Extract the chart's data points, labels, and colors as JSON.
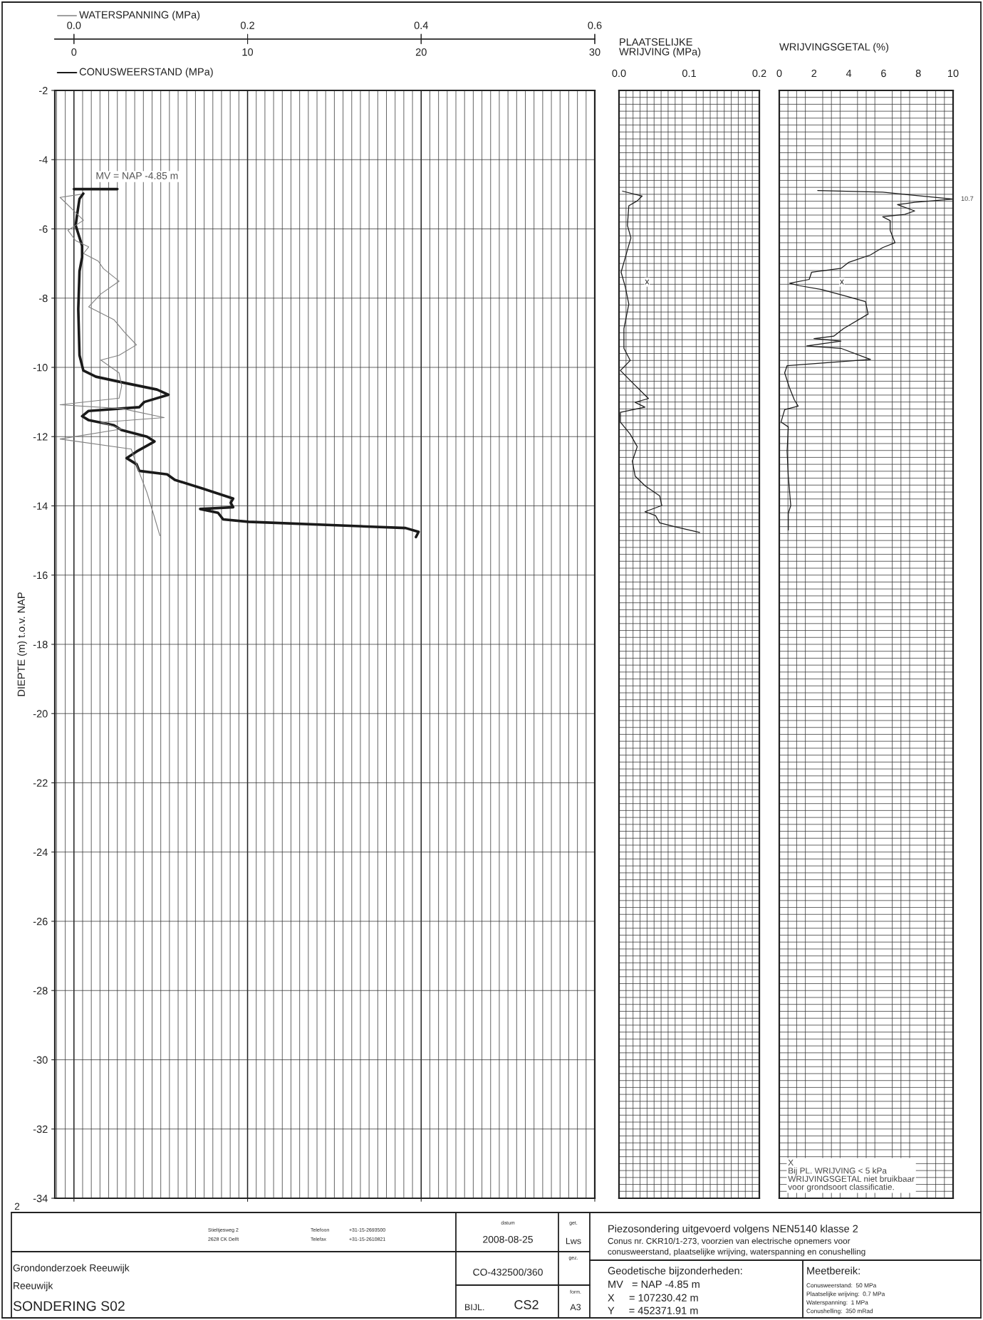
{
  "chart_data": [
    {
      "type": "line",
      "orientation": "horizontal",
      "xlabel": "CONUSWEERSTAND (MPa)",
      "x2label": "WATERSPANNING (MPa)",
      "ylabel": "DIEPTE (m) t.o.v. NAP",
      "xlim": [
        -1.1,
        30
      ],
      "xticks": [
        0,
        10,
        20,
        30
      ],
      "x2lim": [
        -0.022,
        0.6
      ],
      "x2ticks": [
        {
          "value": 0,
          "label": "0.0"
        },
        {
          "value": 0.2,
          "label": "0.2"
        },
        {
          "value": 0.4,
          "label": "0.4"
        },
        {
          "value": 0.6,
          "label": "0.6"
        }
      ],
      "ylim": [
        -34,
        -2
      ],
      "yticks": [
        -2,
        -4,
        -6,
        -8,
        -10,
        -12,
        -14,
        -16,
        -18,
        -20,
        -22,
        -24,
        -26,
        -28,
        -30,
        -32,
        -34
      ],
      "grid": true,
      "series": [
        {
          "color": "#1a1a1a",
          "x": [
            -4.98,
            -5.13,
            -5.6,
            -5.9,
            -6.49,
            -6.82,
            -7.22,
            -8.32,
            -9.65,
            -10.09,
            -10.27,
            -10.46,
            -10.64,
            -10.79,
            -11.0,
            -11.15,
            -11.26,
            -11.41,
            -11.52,
            -11.67,
            -11.81,
            -12.0,
            -12.14,
            -12.43,
            -12.62,
            -12.8,
            -12.99,
            -13.09,
            -13.25,
            -13.5,
            -13.79,
            -13.91,
            -14.04,
            -14.09,
            -14.2,
            -14.39,
            -14.46,
            -14.64,
            -14.75,
            -14.9
          ],
          "values": [
            0.54,
            0.32,
            0.18,
            0.1,
            0.47,
            0.47,
            0.32,
            0.25,
            0.32,
            0.54,
            1.27,
            3.03,
            4.78,
            5.44,
            4.05,
            3.76,
            0.83,
            0.47,
            0.83,
            2.3,
            2.74,
            4.2,
            4.64,
            3.61,
            3.03,
            3.61,
            3.76,
            5.37,
            5.81,
            7.42,
            9.17,
            9.03,
            9.17,
            7.27,
            8.3,
            8.59,
            10.05,
            19.1,
            19.85,
            19.7
          ]
        },
        {
          "color": "#808080",
          "axis": "x2",
          "x": [
            -5.0,
            -5.09,
            -5.38,
            -5.75,
            -6.04,
            -6.34,
            -6.52,
            -6.71,
            -6.93,
            -7.15,
            -7.51,
            -7.88,
            -8.25,
            -8.62,
            -8.98,
            -9.35,
            -9.65,
            -9.79,
            -10.16,
            -10.53,
            -10.89,
            -11.08,
            -11.19,
            -11.45,
            -11.59,
            -11.78,
            -12.07,
            -12.36,
            -13.02,
            -13.61,
            -14.35,
            -14.86
          ],
          "values": [
            0.008,
            -0.016,
            -0.004,
            0.011,
            -0.007,
            0.002,
            0.017,
            0.011,
            0.028,
            0.034,
            0.052,
            0.031,
            0.017,
            0.046,
            0.058,
            0.072,
            0.052,
            0.031,
            0.052,
            0.055,
            0.052,
            -0.016,
            0.055,
            0.104,
            0.031,
            0.055,
            -0.016,
            0.066,
            0.075,
            0.084,
            0.093,
            0.099
          ]
        },
        {
          "color": "#1a1a1a",
          "x": [
            -4.85,
            -4.85
          ],
          "values": [
            0,
            2.5
          ]
        }
      ],
      "annotations": [
        {
          "text": "MV = NAP -4.85 m",
          "x": 0,
          "y": -4.85
        },
        "2"
      ]
    },
    {
      "type": "line",
      "orientation": "horizontal",
      "xlabel": "PLAATSELIJKE\nWRIJVING (MPa)",
      "xlim": [
        0,
        0.2
      ],
      "xticks": [
        {
          "value": 0,
          "label": "0.0"
        },
        {
          "value": 0.1,
          "label": "0.1"
        },
        {
          "value": 0.2,
          "label": "0.2"
        }
      ],
      "ylim": [
        -34,
        -2
      ],
      "yticks": [
        -2,
        -4,
        -6,
        -8,
        -10,
        -12,
        -14,
        -16,
        -18,
        -20,
        -22,
        -24,
        -26,
        -28,
        -30,
        -32,
        -34
      ],
      "grid": true,
      "tick_labels": "x",
      "series": [
        {
          "color": "#1a1a1a",
          "x": [
            -4.91,
            -5.05,
            -5.19,
            -5.33,
            -5.9,
            -6.26,
            -6.61,
            -7.25,
            -7.68,
            -8.17,
            -8.88,
            -9.45,
            -9.8,
            -10.09,
            -10.44,
            -10.9,
            -11.01,
            -11.15,
            -11.3,
            -11.58,
            -11.93,
            -12.29,
            -12.71,
            -13.14,
            -13.42,
            -13.71,
            -13.99,
            -14.17,
            -14.28,
            -14.49,
            -14.6,
            -14.77
          ],
          "values": [
            0.005,
            0.033,
            0.026,
            0.014,
            0.012,
            0.017,
            0.012,
            0.003,
            0.009,
            0.014,
            0.007,
            0.007,
            0.016,
            0.002,
            0.019,
            0.042,
            0.023,
            0.037,
            0.002,
            0.002,
            0.016,
            0.026,
            0.019,
            0.023,
            0.037,
            0.058,
            0.061,
            0.037,
            0.052,
            0.058,
            0.079,
            0.115
          ]
        }
      ],
      "annotations": [
        "x"
      ]
    },
    {
      "type": "line",
      "orientation": "horizontal",
      "xlabel": "WRIJVINGSGETAL (%)",
      "xlim": [
        0,
        10
      ],
      "xticks": [
        0,
        2,
        4,
        6,
        8,
        10
      ],
      "ylim": [
        -34,
        -2
      ],
      "yticks": [
        -2,
        -4,
        -6,
        -8,
        -10,
        -12,
        -14,
        -16,
        -18,
        -20,
        -22,
        -24,
        -26,
        -28,
        -30,
        -32,
        -34
      ],
      "grid": true,
      "tick_labels": "x",
      "series": [
        {
          "color": "#1a1a1a",
          "x": [
            -4.89,
            -4.94,
            -5.01,
            -5.14,
            -5.23,
            -5.3,
            -5.48,
            -5.58,
            -5.65,
            -5.76,
            -6.04,
            -6.4,
            -6.54,
            -6.75,
            -6.97,
            -7.14,
            -7.25,
            -7.46,
            -7.57,
            -7.64,
            -7.75,
            -7.96,
            -8.1,
            -8.46,
            -8.88,
            -9.1,
            -9.17,
            -9.24,
            -9.38,
            -9.45,
            -9.77,
            -9.95,
            -10.16,
            -10.59,
            -10.94,
            -11.12,
            -11.22,
            -11.58,
            -11.72,
            -12.43,
            -13.14,
            -13.99,
            -14.21,
            -14.7
          ],
          "values": [
            2.21,
            5.95,
            7.36,
            10,
            7.79,
            6.8,
            7.79,
            7.22,
            5.95,
            6.38,
            6.38,
            6.66,
            5.95,
            5.25,
            3.98,
            3.55,
            1.86,
            1.72,
            0.59,
            1.16,
            2.43,
            3.98,
            4.96,
            5.11,
            3.7,
            3.13,
            2.0,
            3.55,
            1.58,
            3.55,
            5.25,
            0.45,
            0.31,
            0.59,
            0.87,
            1.09,
            0.31,
            0.1,
            0.52,
            0.45,
            0.52,
            0.66,
            0.52,
            0.52
          ]
        }
      ],
      "annotations": [
        {
          "text": "10.7",
          "x": 10,
          "y": -5.14
        },
        "x",
        "X\nBij PL. WRIJVING < 5 kPa\nWRIJVINGSGETAL niet bruikbaar\nvoor grondsoort classificatie."
      ]
    },
    {
      "type": "other",
      "annotations": [
        "datum",
        "2008-08-25",
        "get.",
        "Lws",
        "gez.",
        "CO-432500/360",
        "form.",
        "A3",
        "BIJL.",
        "CS2",
        "Stieltjesweg 2",
        "2628 CK Delft",
        "Telefoon",
        "+31-15-2693500",
        "Telefax",
        "+31-15-2610821",
        "Grondonderzoek Reeuwijk",
        "Reeuwijk",
        "SONDERING S02",
        "Piezosondering uitgevoerd volgens NEN5140 klasse 2",
        "Conus nr. CKR10/1-273, voorzien van electrische opnemers voor",
        "conusweerstand, plaatselijke wrijving, waterspanning en conushelling",
        "Geodetische bijzonderheden:",
        "MV   = NAP -4.85 m",
        "X     = 107230.42 m",
        "Y     = 452371.91 m",
        "Meetbereik:",
        "Conusweerstand:  50 MPa",
        "Plaatselijke wrijving:  0.7 MPa",
        "Waterspanning:  1 MPa",
        "Conushelling:  350 mRad"
      ]
    }
  ]
}
